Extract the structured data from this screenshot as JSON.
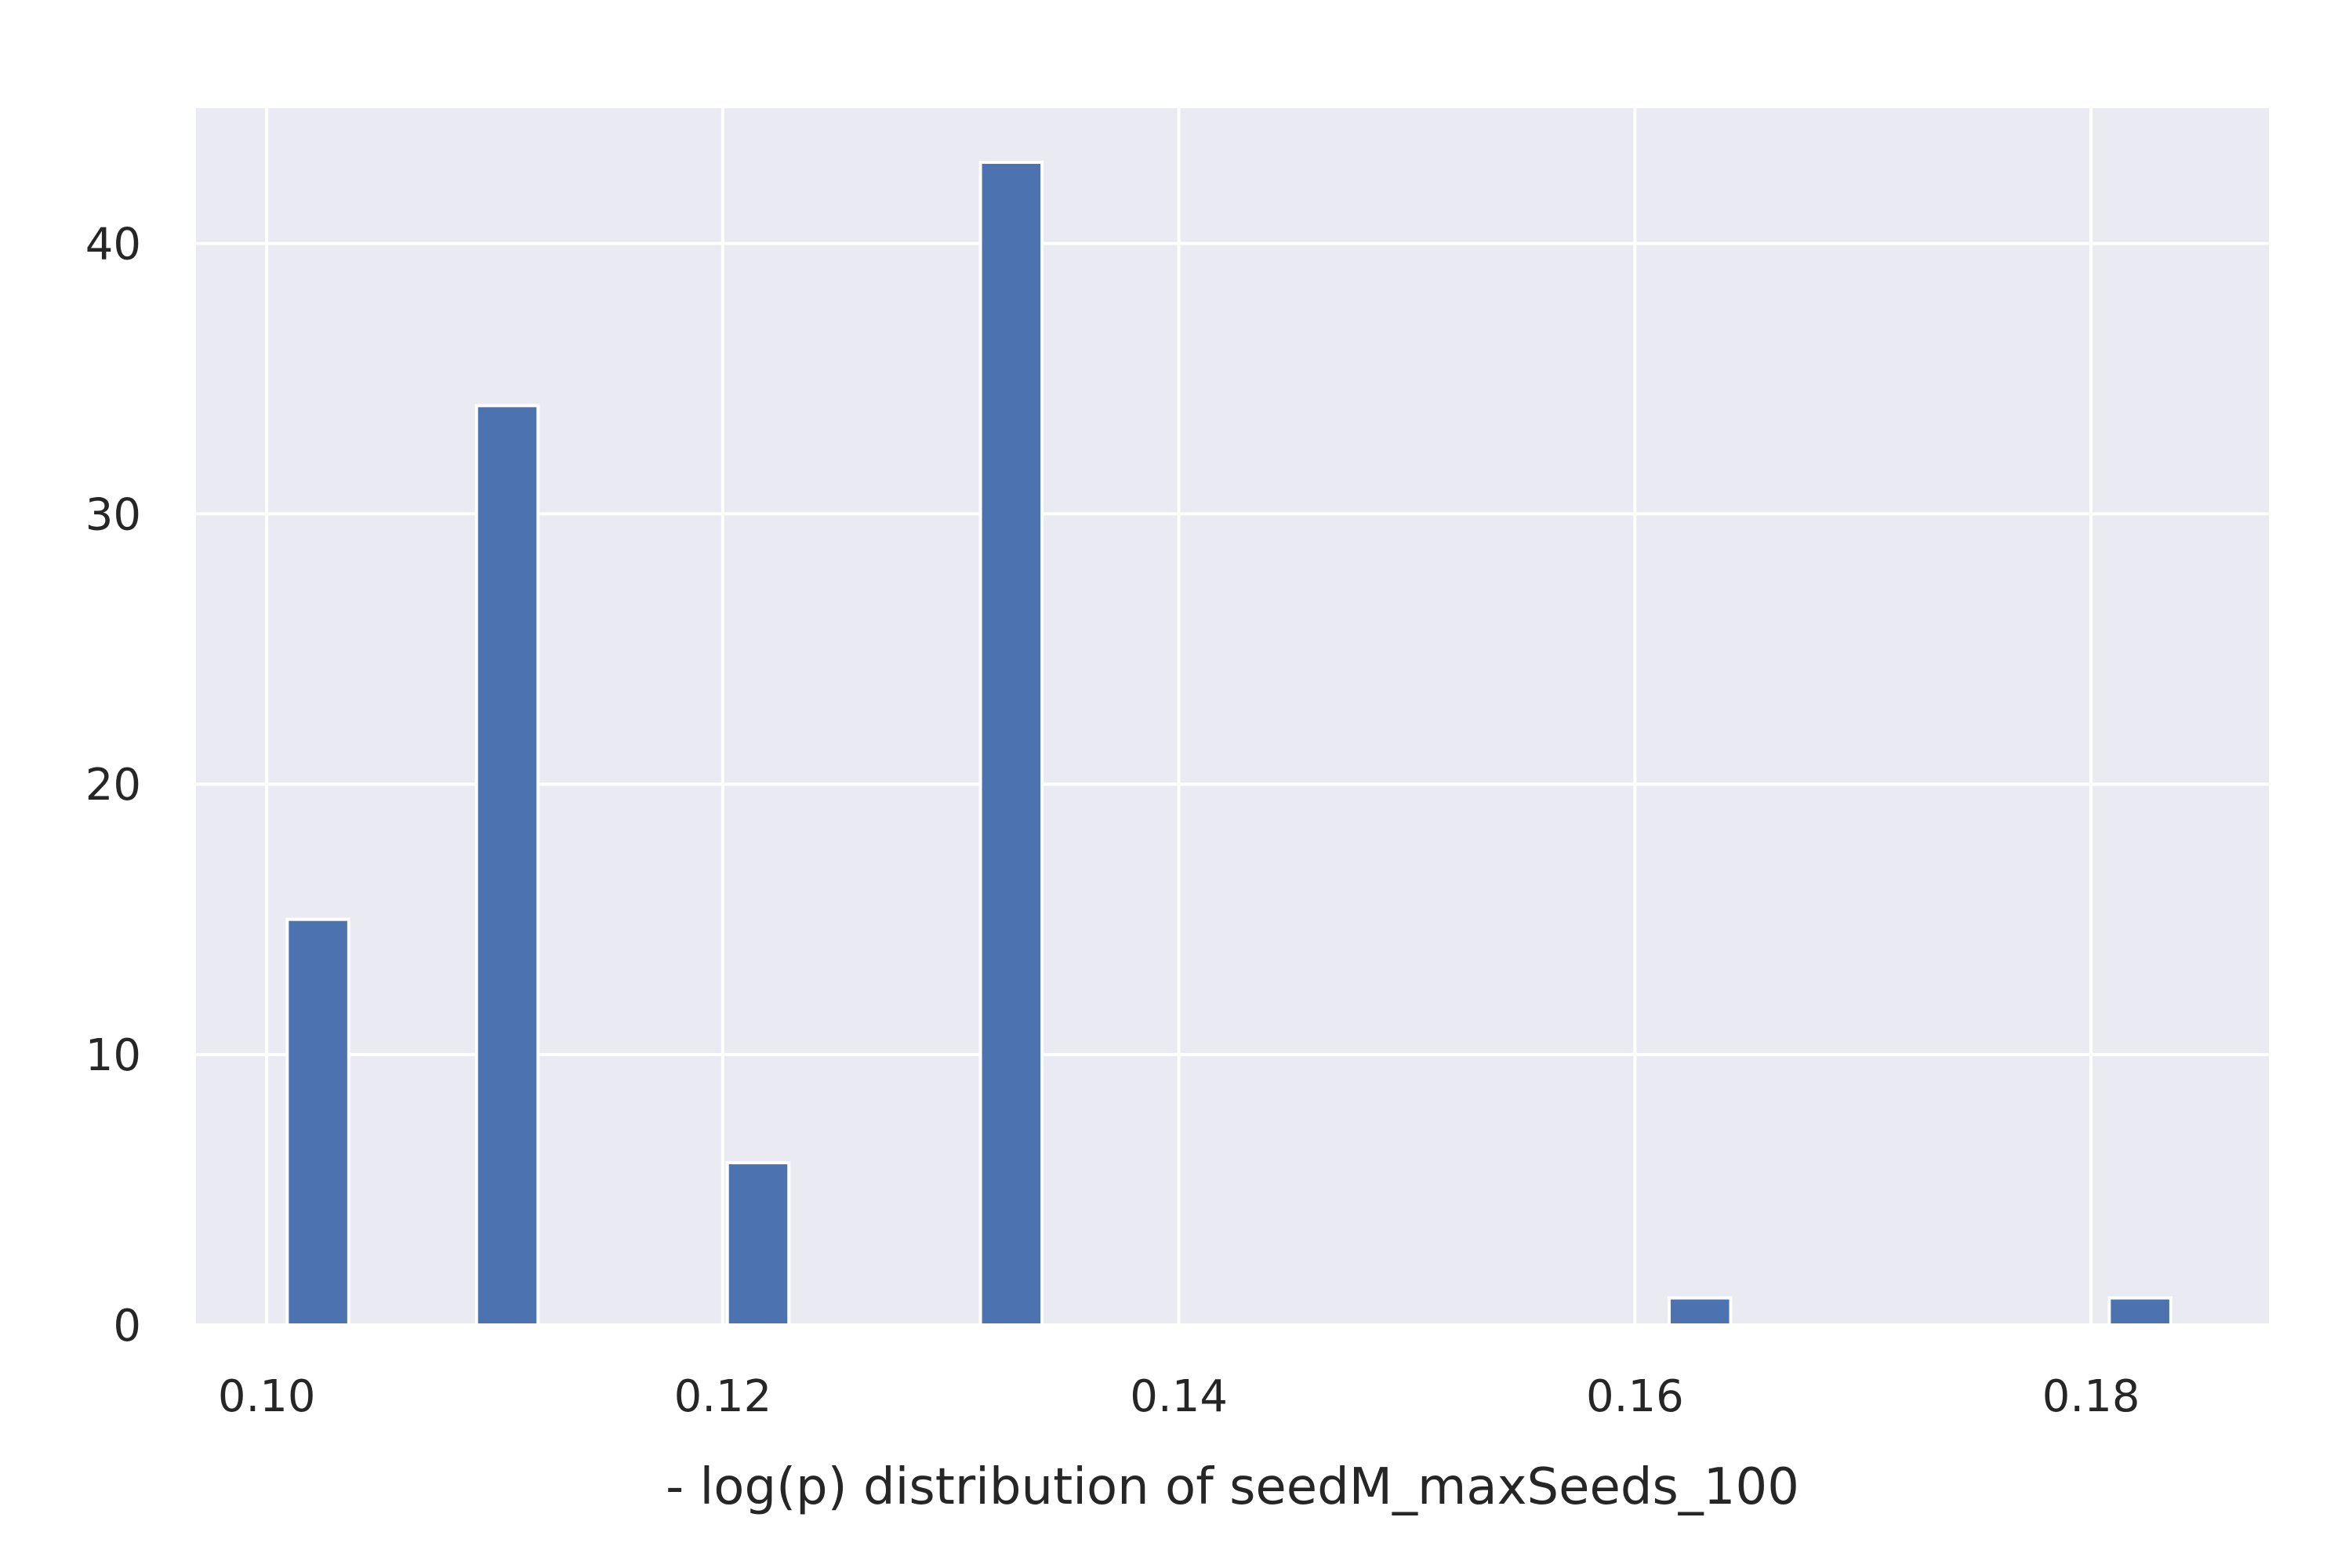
{
  "chart_data": {
    "type": "bar",
    "title": "",
    "xlabel": "- log(p) distribution of seedM_maxSeeds_100",
    "ylabel": "",
    "xlim": [
      0.0969,
      0.1878
    ],
    "ylim": [
      0,
      45
    ],
    "x_ticks": [
      {
        "value": 0.1,
        "label": "0.10"
      },
      {
        "value": 0.12,
        "label": "0.12"
      },
      {
        "value": 0.14,
        "label": "0.14"
      },
      {
        "value": 0.16,
        "label": "0.16"
      },
      {
        "value": 0.18,
        "label": "0.18"
      }
    ],
    "y_ticks": [
      {
        "value": 0,
        "label": "0"
      },
      {
        "value": 10,
        "label": "10"
      },
      {
        "value": 20,
        "label": "20"
      },
      {
        "value": 30,
        "label": "30"
      },
      {
        "value": 40,
        "label": "40"
      }
    ],
    "bins": [
      {
        "x0": 0.1009,
        "x1": 0.1036,
        "count": 15
      },
      {
        "x0": 0.1092,
        "x1": 0.1119,
        "count": 34
      },
      {
        "x0": 0.1202,
        "x1": 0.1229,
        "count": 6
      },
      {
        "x0": 0.1313,
        "x1": 0.134,
        "count": 43
      },
      {
        "x0": 0.1615,
        "x1": 0.1642,
        "count": 1
      },
      {
        "x0": 0.1808,
        "x1": 0.1835,
        "count": 1
      }
    ],
    "grid": true,
    "colors": {
      "bar": "#4c72b0",
      "plot_background": "#eaeaf2",
      "grid": "#ffffff",
      "text": "#262626"
    }
  }
}
